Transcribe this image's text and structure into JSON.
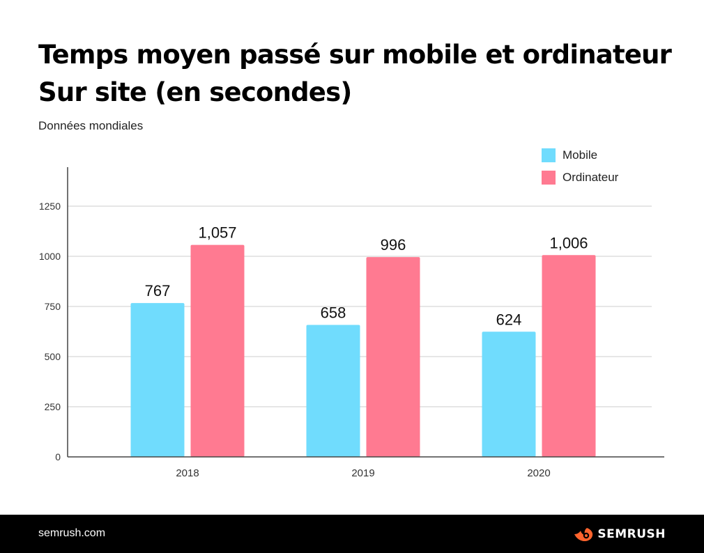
{
  "title_line1": "Temps moyen passé sur mobile et ordinateur",
  "title_line2": "Sur site (en secondes)",
  "subtitle": "Données mondiales",
  "footer": {
    "site": "semrush.com",
    "brand": "SEMRUSH",
    "brand_icon": "semrush-flame-icon"
  },
  "colors": {
    "mobile": "#70dcfd",
    "ordinateur": "#ff7a91",
    "grid": "#dddddd",
    "axis": "#444444",
    "footer_bg": "#000000",
    "brand_orange": "#ff642d"
  },
  "chart_data": {
    "type": "bar",
    "categories": [
      "2018",
      "2019",
      "2020"
    ],
    "series": [
      {
        "name": "Mobile",
        "values": [
          767,
          658,
          624
        ],
        "labels": [
          "767",
          "658",
          "624"
        ]
      },
      {
        "name": "Ordinateur",
        "values": [
          1057,
          996,
          1006
        ],
        "labels": [
          "1,057",
          "996",
          "1,006"
        ]
      }
    ],
    "yticks": [
      0,
      250,
      500,
      750,
      1000,
      1250
    ],
    "ylim": [
      0,
      1250
    ],
    "grid": true,
    "legend_position": "top-right"
  }
}
